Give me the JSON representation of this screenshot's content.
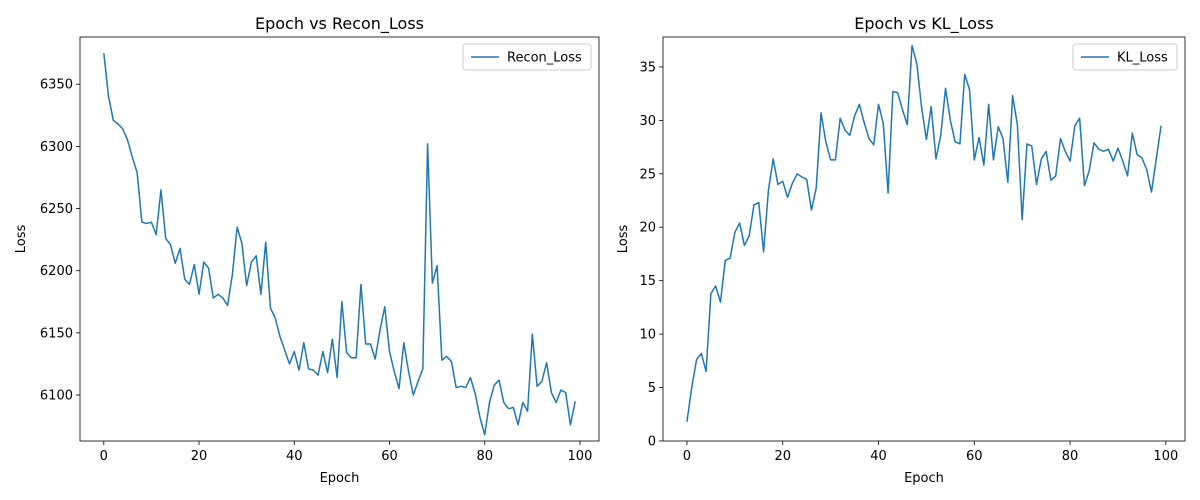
{
  "colors": {
    "line": "#1f77b4",
    "axes": "#000000",
    "legend_border": "#cccccc",
    "background": "#ffffff"
  },
  "chart_data": [
    {
      "type": "line",
      "title": "Epoch vs Recon_Loss",
      "xlabel": "Epoch",
      "ylabel": "Loss",
      "xlim": [
        -5,
        104
      ],
      "ylim": [
        6063,
        6388
      ],
      "xticks": [
        0,
        20,
        40,
        60,
        80,
        100
      ],
      "yticks": [
        6100,
        6150,
        6200,
        6250,
        6300,
        6350
      ],
      "grid": false,
      "legend_position": "upper right",
      "series": [
        {
          "name": "Recon_Loss",
          "x": [
            0,
            1,
            2,
            3,
            4,
            5,
            6,
            7,
            8,
            9,
            10,
            11,
            12,
            13,
            14,
            15,
            16,
            17,
            18,
            19,
            20,
            21,
            22,
            23,
            24,
            25,
            26,
            27,
            28,
            29,
            30,
            31,
            32,
            33,
            34,
            35,
            36,
            37,
            38,
            39,
            40,
            41,
            42,
            43,
            44,
            45,
            46,
            47,
            48,
            49,
            50,
            51,
            52,
            53,
            54,
            55,
            56,
            57,
            58,
            59,
            60,
            61,
            62,
            63,
            64,
            65,
            66,
            67,
            68,
            69,
            70,
            71,
            72,
            73,
            74,
            75,
            76,
            77,
            78,
            79,
            80,
            81,
            82,
            83,
            84,
            85,
            86,
            87,
            88,
            89,
            90,
            91,
            92,
            93,
            94,
            95,
            96,
            97,
            98,
            99
          ],
          "y": [
            6375,
            6340,
            6321,
            6318,
            6314,
            6305,
            6291,
            6279,
            6239,
            6238,
            6239,
            6229,
            6265,
            6226,
            6221,
            6206,
            6218,
            6193,
            6189,
            6205,
            6181,
            6207,
            6202,
            6178,
            6181,
            6178,
            6172,
            6197,
            6235,
            6222,
            6188,
            6207,
            6212,
            6181,
            6223,
            6170,
            6162,
            6147,
            6136,
            6125,
            6135,
            6120,
            6142,
            6121,
            6120,
            6116,
            6135,
            6118,
            6145,
            6114,
            6175,
            6134,
            6130,
            6130,
            6189,
            6141,
            6141,
            6129,
            6152,
            6171,
            6135,
            6119,
            6105,
            6142,
            6119,
            6100,
            6111,
            6121,
            6302,
            6190,
            6204,
            6128,
            6131,
            6127,
            6106,
            6107,
            6106,
            6114,
            6101,
            6082,
            6068,
            6094,
            6108,
            6112,
            6094,
            6089,
            6090,
            6076,
            6094,
            6087,
            6149,
            6107,
            6111,
            6126,
            6102,
            6094,
            6104,
            6102,
            6076,
            6095
          ]
        }
      ]
    },
    {
      "type": "line",
      "title": "Epoch vs KL_Loss",
      "xlabel": "Epoch",
      "ylabel": "Loss",
      "xlim": [
        -5,
        104
      ],
      "ylim": [
        0,
        37.8
      ],
      "xticks": [
        0,
        20,
        40,
        60,
        80,
        100
      ],
      "yticks": [
        0,
        5,
        10,
        15,
        20,
        25,
        30,
        35
      ],
      "grid": false,
      "legend_position": "upper right",
      "series": [
        {
          "name": "KL_Loss",
          "x": [
            0,
            1,
            2,
            3,
            4,
            5,
            6,
            7,
            8,
            9,
            10,
            11,
            12,
            13,
            14,
            15,
            16,
            17,
            18,
            19,
            20,
            21,
            22,
            23,
            24,
            25,
            26,
            27,
            28,
            29,
            30,
            31,
            32,
            33,
            34,
            35,
            36,
            37,
            38,
            39,
            40,
            41,
            42,
            43,
            44,
            45,
            46,
            47,
            48,
            49,
            50,
            51,
            52,
            53,
            54,
            55,
            56,
            57,
            58,
            59,
            60,
            61,
            62,
            63,
            64,
            65,
            66,
            67,
            68,
            69,
            70,
            71,
            72,
            73,
            74,
            75,
            76,
            77,
            78,
            79,
            80,
            81,
            82,
            83,
            84,
            85,
            86,
            87,
            88,
            89,
            90,
            91,
            92,
            93,
            94,
            95,
            96,
            97,
            98,
            99
          ],
          "y": [
            1.8,
            5.0,
            7.6,
            8.2,
            6.5,
            13.8,
            14.5,
            13.0,
            16.9,
            17.1,
            19.5,
            20.4,
            18.3,
            19.2,
            22.1,
            22.3,
            17.7,
            23.4,
            26.4,
            24.0,
            24.3,
            22.8,
            24.1,
            25.0,
            24.7,
            24.5,
            21.6,
            23.7,
            30.7,
            28.0,
            26.3,
            26.3,
            30.2,
            29.1,
            28.6,
            30.4,
            31.5,
            29.8,
            28.3,
            27.7,
            31.5,
            29.7,
            23.2,
            32.7,
            32.6,
            31.0,
            29.6,
            37.0,
            35.3,
            31.2,
            28.2,
            31.3,
            26.4,
            28.6,
            33.0,
            30.0,
            28.0,
            27.8,
            34.3,
            32.9,
            26.3,
            28.4,
            25.8,
            31.5,
            26.3,
            29.4,
            28.3,
            24.2,
            32.3,
            29.6,
            20.7,
            27.8,
            27.6,
            24.0,
            26.4,
            27.1,
            24.4,
            24.8,
            28.3,
            27.1,
            26.2,
            29.5,
            30.2,
            23.9,
            25.3,
            27.9,
            27.3,
            27.1,
            27.3,
            26.2,
            27.4,
            26.2,
            24.8,
            28.8,
            26.8,
            26.5,
            25.4,
            23.3,
            26.4,
            29.5
          ]
        }
      ]
    }
  ]
}
